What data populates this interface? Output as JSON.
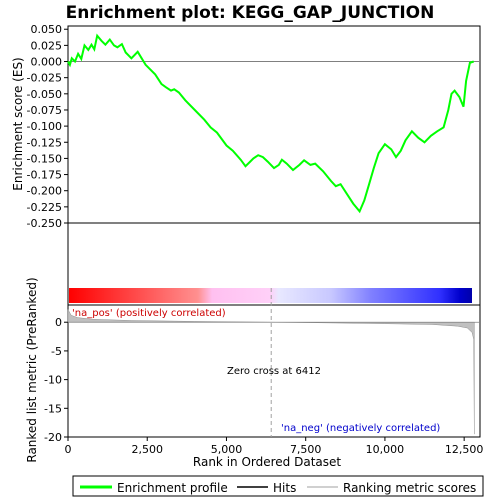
{
  "chart_data": [
    {
      "type": "line",
      "title": "Enrichment plot: KEGG_GAP_JUNCTION",
      "ylabel": "Enrichment score (ES)",
      "ylim": [
        -0.25,
        0.055
      ],
      "y_ticks": [
        0.05,
        0.025,
        0.0,
        -0.025,
        -0.05,
        -0.075,
        -0.1,
        -0.125,
        -0.15,
        -0.175,
        -0.2,
        -0.225,
        -0.25
      ],
      "y_tick_labels": [
        "0.050",
        "0.025",
        "0.000",
        "-0.025",
        "-0.050",
        "-0.075",
        "-0.100",
        "-0.125",
        "-0.150",
        "-0.175",
        "-0.200",
        "-0.225",
        "-0.250"
      ],
      "grid": false,
      "series": [
        {
          "name": "Enrichment profile",
          "color": "#00ff00",
          "points": [
            [
              0,
              0
            ],
            [
              60,
              -0.005
            ],
            [
              120,
              0.005
            ],
            [
              220,
              0.0
            ],
            [
              320,
              0.012
            ],
            [
              420,
              0.004
            ],
            [
              520,
              0.025
            ],
            [
              640,
              0.018
            ],
            [
              740,
              0.026
            ],
            [
              830,
              0.019
            ],
            [
              920,
              0.04
            ],
            [
              1060,
              0.032
            ],
            [
              1180,
              0.026
            ],
            [
              1320,
              0.034
            ],
            [
              1450,
              0.025
            ],
            [
              1560,
              0.022
            ],
            [
              1700,
              0.027
            ],
            [
              1820,
              0.014
            ],
            [
              2000,
              0.005
            ],
            [
              2200,
              0.015
            ],
            [
              2450,
              -0.005
            ],
            [
              2750,
              -0.02
            ],
            [
              2950,
              -0.035
            ],
            [
              3100,
              -0.04
            ],
            [
              3250,
              -0.045
            ],
            [
              3350,
              -0.043
            ],
            [
              3500,
              -0.048
            ],
            [
              3700,
              -0.06
            ],
            [
              4000,
              -0.075
            ],
            [
              4300,
              -0.09
            ],
            [
              4500,
              -0.102
            ],
            [
              4700,
              -0.11
            ],
            [
              5000,
              -0.13
            ],
            [
              5200,
              -0.138
            ],
            [
              5450,
              -0.152
            ],
            [
              5600,
              -0.162
            ],
            [
              5750,
              -0.155
            ],
            [
              5850,
              -0.15
            ],
            [
              6000,
              -0.145
            ],
            [
              6150,
              -0.148
            ],
            [
              6300,
              -0.155
            ],
            [
              6500,
              -0.165
            ],
            [
              6650,
              -0.16
            ],
            [
              6750,
              -0.152
            ],
            [
              6900,
              -0.158
            ],
            [
              7100,
              -0.168
            ],
            [
              7300,
              -0.16
            ],
            [
              7450,
              -0.153
            ],
            [
              7650,
              -0.16
            ],
            [
              7800,
              -0.158
            ],
            [
              8050,
              -0.17
            ],
            [
              8300,
              -0.185
            ],
            [
              8450,
              -0.193
            ],
            [
              8600,
              -0.19
            ],
            [
              8800,
              -0.205
            ],
            [
              9000,
              -0.22
            ],
            [
              9200,
              -0.232
            ],
            [
              9350,
              -0.215
            ],
            [
              9500,
              -0.19
            ],
            [
              9650,
              -0.165
            ],
            [
              9800,
              -0.142
            ],
            [
              10000,
              -0.128
            ],
            [
              10200,
              -0.136
            ],
            [
              10350,
              -0.148
            ],
            [
              10500,
              -0.138
            ],
            [
              10650,
              -0.122
            ],
            [
              10850,
              -0.108
            ],
            [
              11050,
              -0.118
            ],
            [
              11250,
              -0.125
            ],
            [
              11450,
              -0.115
            ],
            [
              11650,
              -0.108
            ],
            [
              11850,
              -0.102
            ],
            [
              12000,
              -0.075
            ],
            [
              12100,
              -0.05
            ],
            [
              12200,
              -0.045
            ],
            [
              12350,
              -0.055
            ],
            [
              12480,
              -0.07
            ],
            [
              12560,
              -0.03
            ],
            [
              12680,
              -0.002
            ],
            [
              12800,
              0.0
            ]
          ]
        }
      ]
    },
    {
      "type": "line",
      "ylabel": "Ranked list metric (PreRanked)",
      "xlabel": "Rank in Ordered Dataset",
      "xlim": [
        0,
        13000
      ],
      "ylim": [
        -20,
        3
      ],
      "x_ticks": [
        0,
        2500,
        5000,
        7500,
        10000,
        12500
      ],
      "x_tick_labels": [
        "0",
        "2,500",
        "5,000",
        "7,500",
        "10,000",
        "12,500"
      ],
      "y_ticks": [
        0,
        -5,
        -10,
        -15,
        -20
      ],
      "y_tick_labels": [
        "0",
        "-5",
        "-10",
        "-15",
        "-20"
      ],
      "series": [
        {
          "name": "Ranking metric scores",
          "color": "#c0c0c0",
          "points": [
            [
              0,
              2.2
            ],
            [
              100,
              1.2
            ],
            [
              300,
              0.8
            ],
            [
              800,
              0.5
            ],
            [
              2000,
              0.3
            ],
            [
              4000,
              0.15
            ],
            [
              6412,
              0.0
            ],
            [
              8000,
              -0.1
            ],
            [
              10000,
              -0.25
            ],
            [
              11500,
              -0.4
            ],
            [
              12300,
              -0.7
            ],
            [
              12600,
              -1.0
            ],
            [
              12750,
              -1.8
            ],
            [
              12800,
              -3.0
            ],
            [
              12820,
              -19.5
            ]
          ]
        }
      ],
      "zero_cross_rank": 6412,
      "annotations": [
        "'na_pos' (positively correlated)",
        "Zero cross at 6412",
        "'na_neg' (negatively correlated)"
      ]
    }
  ],
  "hits": [
    60,
    180,
    280,
    340,
    420,
    560,
    640,
    760,
    890,
    960,
    1080,
    1150,
    1360,
    1720,
    1830,
    2180,
    2230,
    3050,
    3310,
    3500,
    4470,
    4950,
    5500,
    5680,
    5780,
    5840,
    5950,
    6080,
    6480,
    6700,
    6800,
    7100,
    7380,
    7490,
    7560,
    7810,
    8420,
    8580,
    9080,
    9320,
    9450,
    9520,
    9560,
    9600,
    9640,
    9680,
    9720,
    9800,
    9900,
    9960,
    10350,
    10450,
    10560,
    10630,
    10870,
    11280,
    11420,
    11640,
    11780,
    11850,
    11920,
    11960,
    12000,
    12050,
    12100,
    12480,
    12560,
    12600,
    12700,
    12820
  ],
  "legend": {
    "items": [
      {
        "label": "Enrichment profile",
        "color": "#00ff00"
      },
      {
        "label": "Hits",
        "color": "#000000"
      },
      {
        "label": "Ranking metric scores",
        "color": "#c0c0c0"
      }
    ]
  }
}
